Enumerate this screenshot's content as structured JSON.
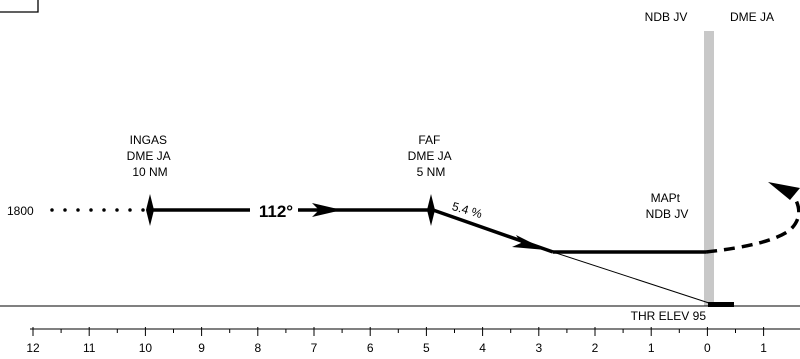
{
  "procedure": {
    "initial_altitude": "1800",
    "course_label": "112°",
    "gradient_label": "5.4 %"
  },
  "beacons": {
    "ndb_label": "NDB JV",
    "dme_label": "DME JA"
  },
  "fixes": {
    "ingas": [
      "INGAS",
      "DME JA",
      "10 NM"
    ],
    "faf": [
      "FAF",
      "DME JA",
      "5 NM"
    ],
    "mapt": [
      "MAPt",
      "NDB JV"
    ]
  },
  "threshold": {
    "label": "THR ELEV 95"
  },
  "distance_scale": {
    "ticks": [
      "12",
      "11",
      "10",
      "9",
      "8",
      "7",
      "6",
      "5",
      "4",
      "3",
      "2",
      "1",
      "0",
      "1"
    ]
  },
  "colors": {
    "ink": "#000000",
    "beacon_bar": "#c8c8c8"
  }
}
